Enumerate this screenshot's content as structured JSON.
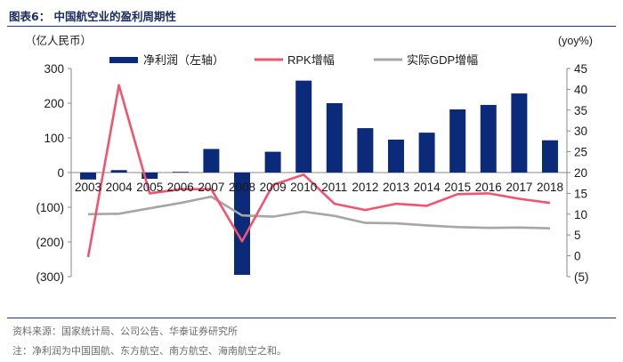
{
  "header": {
    "title": "图表6：  中国航空业的盈利周期性"
  },
  "footer": {
    "source": "资料来源：国家统计局、公司公告、华泰证券研究所",
    "note": "注：净利润为中国国航、东方航空、南方航空、海南航空之和。"
  },
  "colors": {
    "bar": "#0b2a7a",
    "rpk": "#f0546e",
    "gdp": "#a6a6a6",
    "frame": "#233a78"
  },
  "chart_data": {
    "type": "bar",
    "categories": [
      "2003",
      "2004",
      "2005",
      "2006",
      "2007",
      "2008",
      "2009",
      "2010",
      "2011",
      "2012",
      "2013",
      "2014",
      "2015",
      "2016",
      "2017",
      "2018"
    ],
    "left_axis": {
      "unit_label": "（亿人民币）",
      "ylim": [
        -300,
        300
      ],
      "ticks": [
        300,
        200,
        100,
        0,
        -100,
        -200,
        -300
      ],
      "tick_labels": [
        "300",
        "200",
        "100",
        "0",
        "(100)",
        "(200)",
        "(300)"
      ]
    },
    "right_axis": {
      "unit_label": "(yoy%)",
      "ylim": [
        -5,
        45
      ],
      "ticks": [
        45,
        40,
        35,
        30,
        25,
        20,
        15,
        10,
        5,
        0,
        -5
      ],
      "tick_labels": [
        "45",
        "40",
        "35",
        "30",
        "25",
        "20",
        "15",
        "10",
        "5",
        "0",
        "(5)"
      ]
    },
    "series": [
      {
        "name": "净利润（左轴）",
        "kind": "bar",
        "axis": "left",
        "values": [
          -20,
          7,
          -18,
          2,
          68,
          -295,
          60,
          265,
          200,
          128,
          95,
          115,
          182,
          195,
          228,
          93
        ]
      },
      {
        "name": "RPK增幅",
        "kind": "line",
        "axis": "right",
        "values": [
          -0.3,
          41,
          15,
          16,
          16,
          3.5,
          17,
          19.5,
          12.5,
          11,
          12.5,
          12,
          14.8,
          15,
          13.7,
          12.7
        ]
      },
      {
        "name": "实际GDP增幅",
        "kind": "line",
        "axis": "right",
        "values": [
          10.0,
          10.1,
          11.4,
          12.7,
          14.2,
          9.7,
          9.4,
          10.6,
          9.6,
          7.9,
          7.8,
          7.3,
          6.9,
          6.7,
          6.8,
          6.6
        ]
      }
    ],
    "legend_position": "top",
    "grid": false
  }
}
